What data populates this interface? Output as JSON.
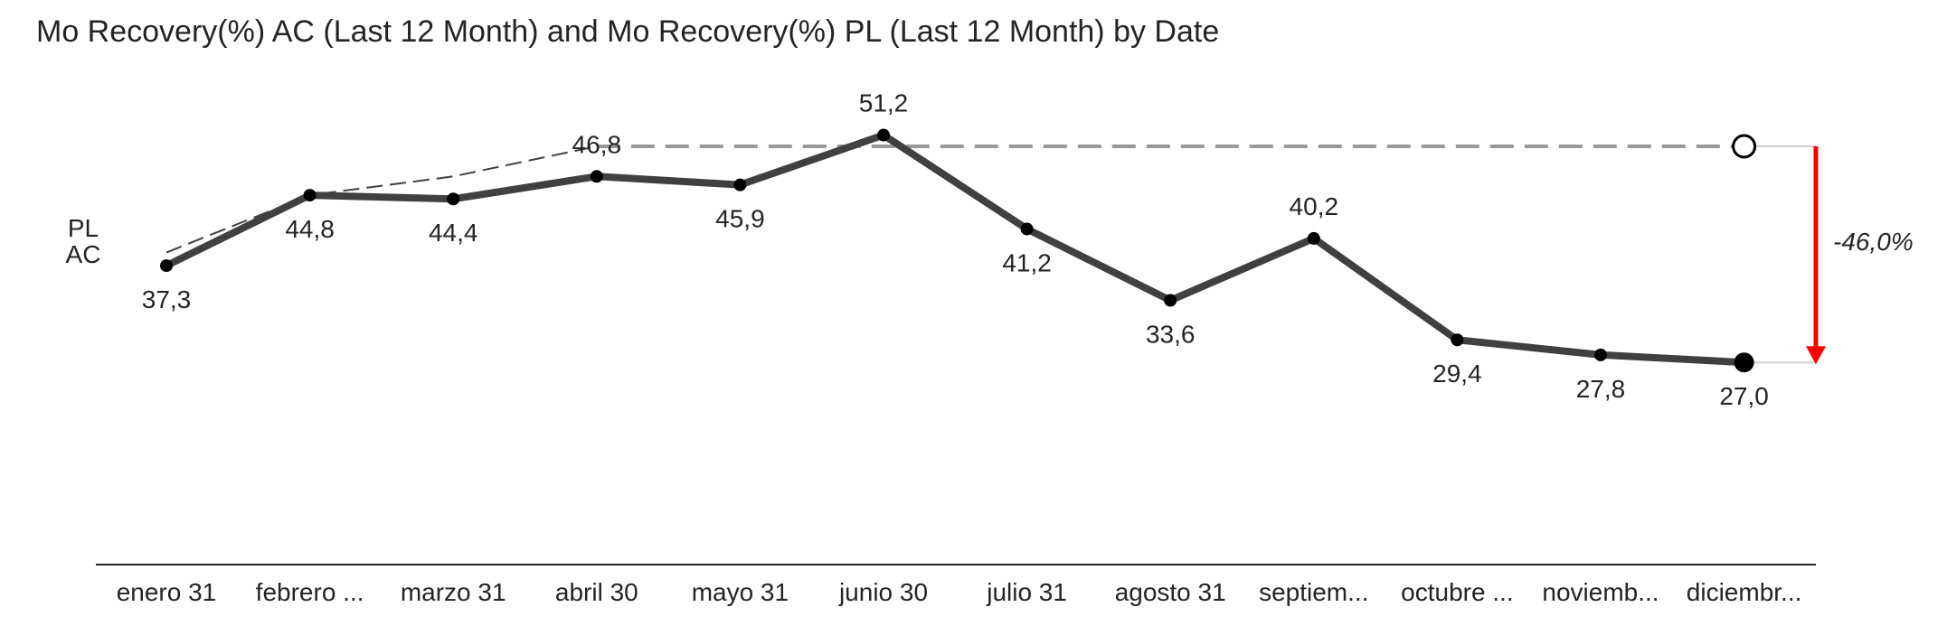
{
  "chart_data": {
    "type": "line",
    "title": "Mo Recovery(%) AC (Last 12 Month) and Mo Recovery(%) PL (Last 12 Month) by Date",
    "categories": [
      "enero 31",
      "febrero ...",
      "marzo 31",
      "abril 30",
      "mayo 31",
      "junio 30",
      "julio 31",
      "agosto 31",
      "septiem...",
      "octubre ...",
      "noviemb...",
      "diciembr..."
    ],
    "series": [
      {
        "name": "AC",
        "values": [
          37.3,
          44.8,
          44.4,
          46.8,
          45.9,
          51.2,
          41.2,
          33.6,
          40.2,
          29.4,
          27.8,
          27.0
        ],
        "labels": [
          "37,3",
          "44,8",
          "44,4",
          "46,8",
          "45,9",
          "51,2",
          "41,2",
          "33,6",
          "40,2",
          "29,4",
          "27,8",
          "27,0"
        ],
        "color": "#404040"
      },
      {
        "name": "PL",
        "values": [
          38.7,
          44.8,
          46.8,
          50.0,
          50.0,
          50.0,
          50.0,
          50.0,
          50.0,
          50.0,
          50.0,
          50.0
        ],
        "color": "#999999"
      }
    ],
    "variance": {
      "label": "-46,0%",
      "value": -46.0,
      "color": "#ff0000"
    },
    "ylim": [
      0,
      60
    ],
    "grid": false,
    "legend_position": "left-inline"
  }
}
